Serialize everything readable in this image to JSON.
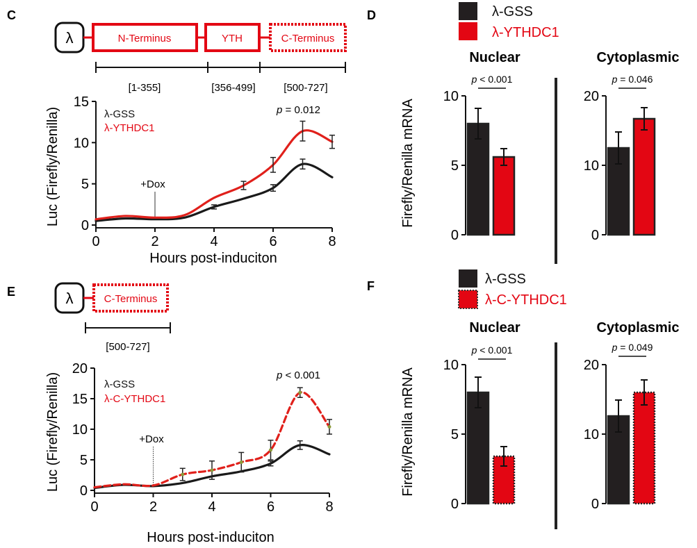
{
  "figure": {
    "panels": {
      "C": {
        "letter": "C",
        "construct": {
          "lambda": "λ",
          "domains": [
            "N-Terminus",
            "YTH",
            "C-Terminus"
          ],
          "ranges": [
            "[1-355]",
            "[356-499]",
            "[500-727]"
          ]
        }
      },
      "D": {
        "letter": "D"
      },
      "E": {
        "letter": "E",
        "construct": {
          "lambda": "λ",
          "domains": [
            "C-Terminus"
          ],
          "ranges": [
            "[500-727]"
          ]
        }
      },
      "F": {
        "letter": "F"
      }
    },
    "colors": {
      "gss": "#231f20",
      "ythdc1": "#e30613",
      "curve_gss": "#1a1a1a",
      "curve_red": "#e0201b"
    }
  },
  "chart_data": [
    {
      "id": "C-chart",
      "type": "line",
      "xlabel": "Hours post-induciton",
      "ylabel": "Luc (Firefly/Renilla)",
      "xlim": [
        0,
        8
      ],
      "ylim": [
        0,
        15
      ],
      "xticks": [
        0,
        2,
        4,
        6,
        8
      ],
      "yticks": [
        0,
        5,
        10,
        15
      ],
      "legend": [
        "λ-GSS",
        "λ-YTHDC1"
      ],
      "pvalue": {
        "prefix": "p",
        "text": " = 0.012"
      },
      "annotation": "+Dox",
      "annotation_x": 2,
      "series": [
        {
          "name": "λ-GSS",
          "color": "#1a1a1a",
          "dashed": false,
          "x": [
            0,
            1,
            2,
            3,
            4,
            5,
            6,
            7,
            8
          ],
          "y": [
            0.5,
            0.8,
            0.7,
            0.9,
            2.2,
            3.2,
            4.5,
            7.4,
            5.8
          ],
          "err": [
            [
              4,
              0.25
            ],
            [
              6,
              0.4
            ],
            [
              7,
              0.6
            ]
          ]
        },
        {
          "name": "λ-YTHDC1",
          "color": "#e0201b",
          "dashed": false,
          "x": [
            0,
            1,
            2,
            3,
            4,
            5,
            6,
            7,
            8
          ],
          "y": [
            0.7,
            1.1,
            0.9,
            1.2,
            3.3,
            4.8,
            7.3,
            11.4,
            10.1
          ],
          "err": [
            [
              5,
              0.5
            ],
            [
              6,
              0.9
            ],
            [
              7,
              1.2
            ],
            [
              8,
              0.8
            ]
          ]
        }
      ]
    },
    {
      "id": "D-nuclear",
      "type": "bar",
      "title": "Nuclear",
      "ylabel": "Firefly/Renilla mRNA",
      "ylim": [
        0,
        10
      ],
      "yticks": [
        0,
        5,
        10
      ],
      "pvalue": {
        "prefix": "p",
        "text": " < 0.001"
      },
      "categories": [
        "λ-GSS",
        "λ-YTHDC1"
      ],
      "values": [
        8.0,
        5.6
      ],
      "errors": [
        1.1,
        0.6
      ],
      "colors": [
        "#231f20",
        "#e30613"
      ],
      "dashed": [
        false,
        false
      ]
    },
    {
      "id": "D-cytoplasmic",
      "type": "bar",
      "title": "Cytoplasmic",
      "ylim": [
        0,
        20
      ],
      "yticks": [
        0,
        10,
        20
      ],
      "pvalue": {
        "prefix": "p",
        "text": " = 0.046"
      },
      "categories": [
        "λ-GSS",
        "λ-YTHDC1"
      ],
      "values": [
        12.5,
        16.7
      ],
      "errors": [
        2.3,
        1.6
      ],
      "colors": [
        "#231f20",
        "#e30613"
      ],
      "dashed": [
        false,
        false
      ]
    },
    {
      "id": "E-chart",
      "type": "line",
      "xlabel": "Hours post-induciton",
      "ylabel": "Luc (Firefly/Renilla)",
      "xlim": [
        0,
        8
      ],
      "ylim": [
        0,
        20
      ],
      "xticks": [
        0,
        2,
        4,
        6,
        8
      ],
      "yticks": [
        0,
        5,
        10,
        15,
        20
      ],
      "legend": [
        "λ-GSS",
        "λ-C-YTHDC1"
      ],
      "pvalue": {
        "prefix": "p",
        "text": " < 0.001"
      },
      "annotation": "+Dox",
      "annotation_x": 2,
      "series": [
        {
          "name": "λ-GSS",
          "color": "#1a1a1a",
          "dashed": false,
          "x": [
            0,
            1,
            2,
            3,
            4,
            5,
            6,
            7,
            8
          ],
          "y": [
            0.4,
            0.9,
            0.7,
            1.2,
            2.3,
            3.1,
            4.4,
            7.4,
            5.9
          ],
          "err": [
            [
              6,
              0.4
            ],
            [
              7,
              0.7
            ]
          ]
        },
        {
          "name": "λ-C-YTHDC1",
          "color": "#e0201b",
          "dashed": true,
          "x": [
            0,
            1,
            2,
            3,
            4,
            5,
            6,
            7,
            8
          ],
          "y": [
            0.5,
            1.0,
            0.8,
            2.6,
            3.3,
            4.6,
            6.6,
            16.0,
            10.4
          ],
          "err": [
            [
              3,
              1.0
            ],
            [
              4,
              1.5
            ],
            [
              5,
              1.6
            ],
            [
              6,
              1.6
            ],
            [
              7,
              0.8
            ],
            [
              8,
              1.2
            ]
          ]
        }
      ]
    },
    {
      "id": "F-nuclear",
      "type": "bar",
      "title": "Nuclear",
      "ylabel": "Firefly/Renilla mRNA",
      "ylim": [
        0,
        10
      ],
      "yticks": [
        0,
        5,
        10
      ],
      "pvalue": {
        "prefix": "p",
        "text": " < 0.001"
      },
      "categories": [
        "λ-GSS",
        "λ-C-YTHDC1"
      ],
      "values": [
        8.0,
        3.4
      ],
      "errors": [
        1.1,
        0.7
      ],
      "colors": [
        "#231f20",
        "#e30613"
      ],
      "dashed": [
        false,
        true
      ]
    },
    {
      "id": "F-cytoplasmic",
      "type": "bar",
      "title": "Cytoplasmic",
      "ylim": [
        0,
        20
      ],
      "yticks": [
        0,
        10,
        20
      ],
      "pvalue": {
        "prefix": "p",
        "text": " = 0.049"
      },
      "categories": [
        "λ-GSS",
        "λ-C-YTHDC1"
      ],
      "values": [
        12.6,
        16.0
      ],
      "errors": [
        2.3,
        1.8
      ],
      "colors": [
        "#231f20",
        "#e30613"
      ],
      "dashed": [
        false,
        true
      ]
    }
  ]
}
